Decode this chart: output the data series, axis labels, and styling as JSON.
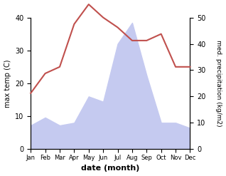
{
  "months": [
    "Jan",
    "Feb",
    "Mar",
    "Apr",
    "May",
    "Jun",
    "Jul",
    "Aug",
    "Sep",
    "Oct",
    "Nov",
    "Dec"
  ],
  "month_indices": [
    1,
    2,
    3,
    4,
    5,
    6,
    7,
    8,
    9,
    10,
    11,
    12
  ],
  "temp": [
    17,
    23,
    25,
    38,
    44,
    40,
    37,
    33,
    33,
    35,
    25,
    25
  ],
  "precip": [
    9,
    12,
    9,
    10,
    20,
    18,
    40,
    48,
    28,
    10,
    10,
    8
  ],
  "temp_color": "#c0504d",
  "precip_color": "#c5caf0",
  "left_ylabel": "max temp (C)",
  "right_ylabel": "med. precipitation (kg/m2)",
  "xlabel": "date (month)",
  "left_ylim": [
    0,
    40
  ],
  "right_ylim": [
    0,
    50
  ],
  "left_yticks": [
    0,
    10,
    20,
    30,
    40
  ],
  "right_yticks": [
    0,
    10,
    20,
    30,
    40,
    50
  ],
  "figsize": [
    3.18,
    2.47
  ],
  "dpi": 100
}
